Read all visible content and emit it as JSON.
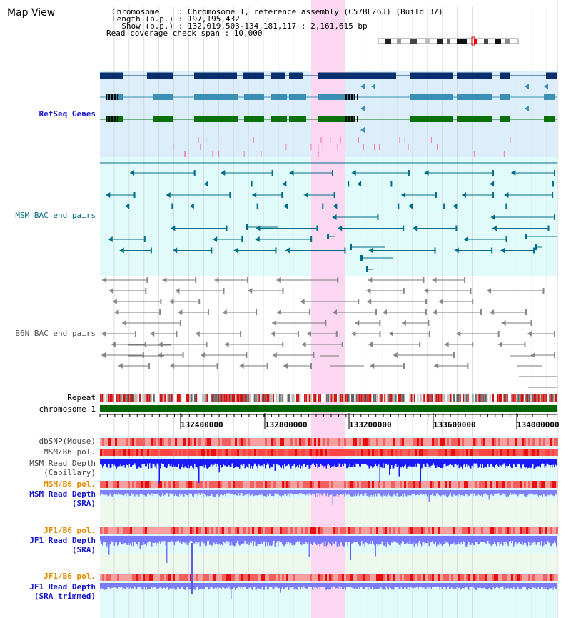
{
  "header": {
    "title": "Map View",
    "info_lines": [
      "Chromosome    : Chromosome 1, reference assembly (C57BL/6J) (Build 37)",
      "Length (b.p.) : 197,195,432",
      "  Show (b.p.) : 132,019,503-134,181,117 : 2,161,615 bp",
      "Read coverage check span : 10,000"
    ]
  },
  "tracks": {
    "refseq": "RefSeq Genes",
    "msm_bac": "MSM BAC end pairs",
    "b6n_bac": "B6N BAC end pairs",
    "repeat": "Repeat",
    "chromosome": "chromosome 1",
    "dbsnp": "dbSNP(Mouse)",
    "msm_b6_pol_1": "MSM/B6 pol.",
    "msm_depth_cap_1": "MSM Read Depth",
    "msm_depth_cap_2": "(Capillary)",
    "msm_b6_pol_2": "MSM/B6 pol.",
    "msm_depth_sra_1": "MSM Read Depth",
    "msm_depth_sra_2": "(SRA)",
    "jf1_b6_pol_1": "JF1/B6 pol.",
    "jf1_depth_sra_1": "JF1 Read Depth",
    "jf1_depth_sra_2": "(SRA)",
    "jf1_b6_pol_2": "JF1/B6 pol.",
    "jf1_depth_trim_1": "JF1 Read Depth",
    "jf1_depth_trim_2": "(SRA trimmed)"
  },
  "ruler": {
    "ticks": [
      "132400000",
      "132800000",
      "133200000",
      "133600000",
      "134000000"
    ]
  },
  "colors": {
    "highlight": "#fbd7f1",
    "refseq_bg": "#dbeefa",
    "msm_bg": "#e1fbfb",
    "b6n_bg": "#ffffff",
    "sra_bg": "#eef9ee",
    "refseq_dark": "#0a2f6e",
    "refseq_mid": "#3b8fb4",
    "refseq_green": "#0a700a",
    "msm_line": "#006d86",
    "b6n_line": "#777777",
    "chrom_green": "#006400",
    "depth_blue": "#1a1aff",
    "depth_light": "#8080ff",
    "pol_red": "#f04040"
  }
}
